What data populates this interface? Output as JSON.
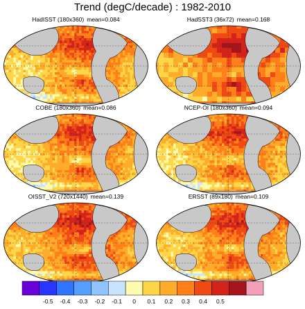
{
  "title": "Trend (degC/decade) : 1982-2010",
  "panels": [
    {
      "name": "HadISST (180x360)",
      "mean_label": "mean=0.084",
      "mean": 0.084,
      "grid": "fine"
    },
    {
      "name": "HadSST3 (36x72)",
      "mean_label": "mean=0.168",
      "mean": 0.168,
      "grid": "coarse"
    },
    {
      "name": "COBE (180x360)",
      "mean_label": "mean=0.086",
      "mean": 0.086,
      "grid": "fine"
    },
    {
      "name": "NCEP-OI (180x360)",
      "mean_label": "mean=0.094",
      "mean": 0.094,
      "grid": "fine"
    },
    {
      "name": "OISST_V2 (720x1440)",
      "mean_label": "mean=0.139",
      "mean": 0.139,
      "grid": "fine"
    },
    {
      "name": "ERSST (89x180)",
      "mean_label": "mean=0.109",
      "mean": 0.109,
      "grid": "fine"
    }
  ],
  "colorbar": {
    "ticks": [
      "-0.5",
      "-0.4",
      "-0.3",
      "-0.2",
      "-0.1",
      "0",
      "0.1",
      "0.2",
      "0.3",
      "0.4",
      "0.5"
    ],
    "colors": [
      "#6a00d8",
      "#2a35ff",
      "#2f74ff",
      "#55a0ff",
      "#8fc4ff",
      "#c9e4ff",
      "#fffbb0",
      "#ffd64a",
      "#ffac2a",
      "#ff7f1a",
      "#f04a14",
      "#d4231a",
      "#a6141e",
      "#f2a0b8"
    ],
    "land_color": "#c8c8c8"
  }
}
